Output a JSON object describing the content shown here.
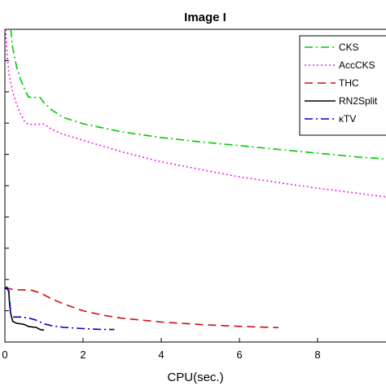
{
  "chart_data": {
    "type": "line",
    "title": "Image I",
    "xlabel": "CPU(sec.)",
    "ylabel": "",
    "xlim": [
      0,
      10
    ],
    "ylim": [
      0,
      1
    ],
    "x_ticks": [
      0,
      2,
      4,
      6,
      8
    ],
    "grid": false,
    "legend_position": "top-right",
    "series": [
      {
        "name": "CKS",
        "color": "#00cc00",
        "dash": "dashdot",
        "x": [
          0.15,
          0.2,
          0.3,
          0.4,
          0.5,
          0.6,
          0.7,
          0.8,
          0.9,
          1.0,
          1.2,
          1.5,
          2.0,
          3.0,
          4.0,
          5.0,
          6.0,
          7.0,
          8.0,
          9.0,
          10.0
        ],
        "y": [
          1.0,
          0.94,
          0.88,
          0.84,
          0.81,
          0.784,
          0.781,
          0.783,
          0.782,
          0.765,
          0.742,
          0.718,
          0.698,
          0.672,
          0.654,
          0.64,
          0.628,
          0.616,
          0.604,
          0.592,
          0.583
        ]
      },
      {
        "name": "AccCKS",
        "color": "#ee22ee",
        "dash": "dot",
        "x": [
          0.02,
          0.05,
          0.1,
          0.2,
          0.3,
          0.4,
          0.5,
          0.6,
          0.8,
          1.0,
          1.2,
          1.5,
          2.0,
          3.0,
          4.0,
          5.0,
          6.0,
          7.0,
          8.0,
          9.0,
          10.0
        ],
        "y": [
          1.0,
          0.93,
          0.86,
          0.8,
          0.76,
          0.73,
          0.706,
          0.696,
          0.696,
          0.697,
          0.68,
          0.664,
          0.645,
          0.608,
          0.576,
          0.552,
          0.528,
          0.51,
          0.492,
          0.476,
          0.46
        ]
      },
      {
        "name": "THC",
        "color": "#cc1111",
        "dash": "dashed",
        "x": [
          0,
          0.2,
          0.4,
          0.7,
          0.9,
          1.2,
          1.5,
          2.0,
          2.5,
          3.0,
          4.0,
          5.0,
          6.0,
          7.0
        ],
        "y": [
          0.175,
          0.168,
          0.167,
          0.165,
          0.157,
          0.138,
          0.122,
          0.1,
          0.086,
          0.076,
          0.064,
          0.056,
          0.05,
          0.046
        ]
      },
      {
        "name": "RN2Split",
        "color": "#000000",
        "dash": "solid",
        "x": [
          0,
          0.05,
          0.1,
          0.12,
          0.15,
          0.2,
          0.3,
          0.4,
          0.5,
          0.6,
          0.7,
          0.8,
          0.9,
          1.0
        ],
        "y": [
          0.17,
          0.175,
          0.16,
          0.12,
          0.09,
          0.066,
          0.06,
          0.058,
          0.056,
          0.05,
          0.048,
          0.047,
          0.04,
          0.038
        ]
      },
      {
        "name": "κTV",
        "color": "#0000bb",
        "dash": "dashdot",
        "x": [
          0,
          0.1,
          0.15,
          0.2,
          0.4,
          0.6,
          0.8,
          1.0,
          1.2,
          1.5,
          2.0,
          2.5,
          2.8
        ],
        "y": [
          0.175,
          0.165,
          0.09,
          0.08,
          0.08,
          0.077,
          0.07,
          0.058,
          0.052,
          0.047,
          0.043,
          0.04,
          0.04
        ]
      }
    ]
  }
}
